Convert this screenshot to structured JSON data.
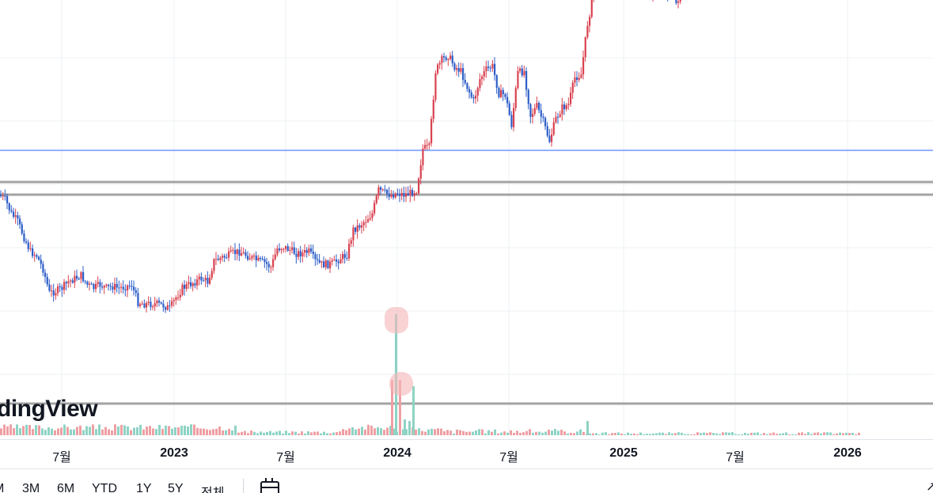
{
  "watermark": {
    "text": "dingView"
  },
  "time_axis": {
    "labels": [
      "7월",
      "2023",
      "7월",
      "2024",
      "7월",
      "2025",
      "7월",
      "2026"
    ]
  },
  "range_bar": {
    "buttons": [
      "M",
      "3M",
      "6M",
      "YTD",
      "1Y",
      "5Y",
      "전체"
    ],
    "calendar_icon": "calendar-icon"
  },
  "colors": {
    "up": "#d9414f",
    "down": "#2d5ec8",
    "volume_up": "#8ed3c4",
    "volume_down": "#ef9fa3",
    "grid": "#eef0f3",
    "horizontal_line": "#2962ff",
    "level_line": "#a3a3a3",
    "highlight": "#f5b5b8"
  },
  "chart_data": {
    "type": "candlestick",
    "y_range_pixels_note": "price axis not shown",
    "period_labels": [
      "7월",
      "2023",
      "7월",
      "2024",
      "7월",
      "2025",
      "7월",
      "2026"
    ],
    "horizontal_levels": [
      {
        "style": "thin-blue"
      },
      {
        "style": "thick-grey"
      },
      {
        "style": "thick-grey"
      }
    ],
    "price_path": [
      [
        0,
        246
      ],
      [
        8,
        252
      ],
      [
        16,
        270
      ],
      [
        24,
        280
      ],
      [
        32,
        300
      ],
      [
        40,
        318
      ],
      [
        48,
        323
      ],
      [
        56,
        340
      ],
      [
        64,
        370
      ],
      [
        72,
        368
      ],
      [
        80,
        364
      ],
      [
        88,
        356
      ],
      [
        96,
        352
      ],
      [
        104,
        348
      ],
      [
        112,
        360
      ],
      [
        120,
        364
      ],
      [
        128,
        360
      ],
      [
        136,
        364
      ],
      [
        144,
        362
      ],
      [
        152,
        364
      ],
      [
        160,
        362
      ],
      [
        168,
        360
      ],
      [
        176,
        382
      ],
      [
        184,
        384
      ],
      [
        192,
        384
      ],
      [
        200,
        384
      ],
      [
        208,
        386
      ],
      [
        216,
        390
      ],
      [
        224,
        376
      ],
      [
        232,
        364
      ],
      [
        240,
        360
      ],
      [
        248,
        356
      ],
      [
        256,
        352
      ],
      [
        264,
        356
      ],
      [
        272,
        330
      ],
      [
        280,
        326
      ],
      [
        288,
        324
      ],
      [
        296,
        320
      ],
      [
        304,
        318
      ],
      [
        312,
        322
      ],
      [
        320,
        326
      ],
      [
        328,
        330
      ],
      [
        336,
        332
      ],
      [
        344,
        338
      ],
      [
        352,
        314
      ],
      [
        360,
        312
      ],
      [
        368,
        316
      ],
      [
        376,
        320
      ],
      [
        384,
        320
      ],
      [
        392,
        318
      ],
      [
        400,
        330
      ],
      [
        408,
        334
      ],
      [
        416,
        334
      ],
      [
        424,
        332
      ],
      [
        432,
        326
      ],
      [
        440,
        322
      ],
      [
        448,
        290
      ],
      [
        456,
        285
      ],
      [
        464,
        278
      ],
      [
        472,
        270
      ],
      [
        480,
        240
      ],
      [
        488,
        244
      ],
      [
        496,
        246
      ],
      [
        504,
        244
      ],
      [
        512,
        246
      ],
      [
        520,
        244
      ],
      [
        528,
        240
      ],
      [
        536,
        188
      ],
      [
        544,
        186
      ],
      [
        552,
        90
      ],
      [
        560,
        76
      ],
      [
        568,
        70
      ],
      [
        576,
        84
      ],
      [
        584,
        90
      ],
      [
        592,
        110
      ],
      [
        600,
        128
      ],
      [
        608,
        100
      ],
      [
        616,
        88
      ],
      [
        624,
        84
      ],
      [
        632,
        118
      ],
      [
        640,
        120
      ],
      [
        648,
        158
      ],
      [
        656,
        92
      ],
      [
        664,
        90
      ],
      [
        672,
        146
      ],
      [
        680,
        134
      ],
      [
        688,
        154
      ],
      [
        696,
        178
      ],
      [
        704,
        150
      ],
      [
        712,
        136
      ],
      [
        720,
        132
      ],
      [
        728,
        98
      ],
      [
        736,
        94
      ],
      [
        744,
        30
      ],
      [
        752,
        -10
      ],
      [
        760,
        -20
      ],
      [
        768,
        -20
      ],
      [
        776,
        -20
      ],
      [
        784,
        -20
      ],
      [
        792,
        -20
      ],
      [
        800,
        -20
      ],
      [
        808,
        -20
      ],
      [
        816,
        -20
      ],
      [
        824,
        -10
      ],
      [
        832,
        -10
      ],
      [
        840,
        -12
      ],
      [
        848,
        -10
      ],
      [
        856,
        4
      ],
      [
        864,
        -12
      ]
    ]
  }
}
